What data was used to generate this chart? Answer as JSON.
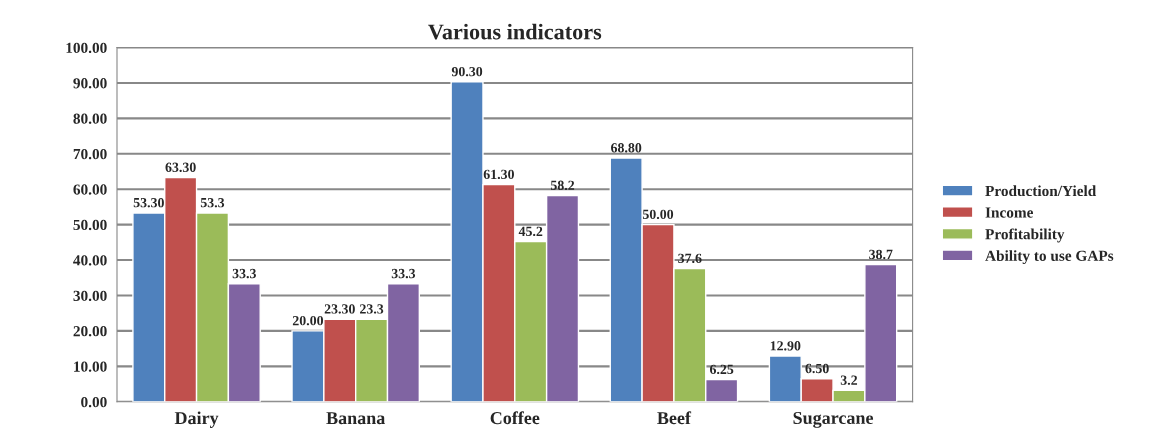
{
  "chart_data": {
    "type": "bar",
    "title": "Various indicators",
    "categories": [
      "Dairy",
      "Banana",
      "Coffee",
      "Beef",
      "Sugarcane"
    ],
    "series": [
      {
        "name": "Production/Yield",
        "color": "#4f81bd",
        "values": [
          53.3,
          20.0,
          90.3,
          68.8,
          12.9
        ],
        "value_labels": [
          "53.30",
          "20.00",
          "90.30",
          "68.80",
          "12.90"
        ]
      },
      {
        "name": "Income",
        "color": "#c0504d",
        "values": [
          63.3,
          23.3,
          61.3,
          50.0,
          6.5
        ],
        "value_labels": [
          "63.30",
          "23.30",
          "61.30",
          "50.00",
          "6.50"
        ]
      },
      {
        "name": "Profitability",
        "color": "#9bbb59",
        "values": [
          53.3,
          23.3,
          45.2,
          37.6,
          3.2
        ],
        "value_labels": [
          "53.3",
          "23.3",
          "45.2",
          "37.6",
          "3.2"
        ]
      },
      {
        "name": "Ability to use GAPs",
        "color": "#8064a2",
        "values": [
          33.3,
          33.3,
          58.2,
          6.25,
          38.7
        ],
        "value_labels": [
          "33.3",
          "33.3",
          "58.2",
          "6.25",
          "38.7"
        ]
      }
    ],
    "ylim": [
      0,
      100
    ],
    "yticks": [
      {
        "value": 0,
        "label": "0.00"
      },
      {
        "value": 10,
        "label": "10.00"
      },
      {
        "value": 20,
        "label": "20.00"
      },
      {
        "value": 30,
        "label": "30.00"
      },
      {
        "value": 40,
        "label": "40.00"
      },
      {
        "value": 50,
        "label": "50.00"
      },
      {
        "value": 60,
        "label": "60.00"
      },
      {
        "value": 70,
        "label": "70.00"
      },
      {
        "value": 80,
        "label": "80.00"
      },
      {
        "value": 90,
        "label": "90.00"
      },
      {
        "value": 100,
        "label": "100.00"
      }
    ],
    "grid": "y",
    "legend": "right"
  }
}
